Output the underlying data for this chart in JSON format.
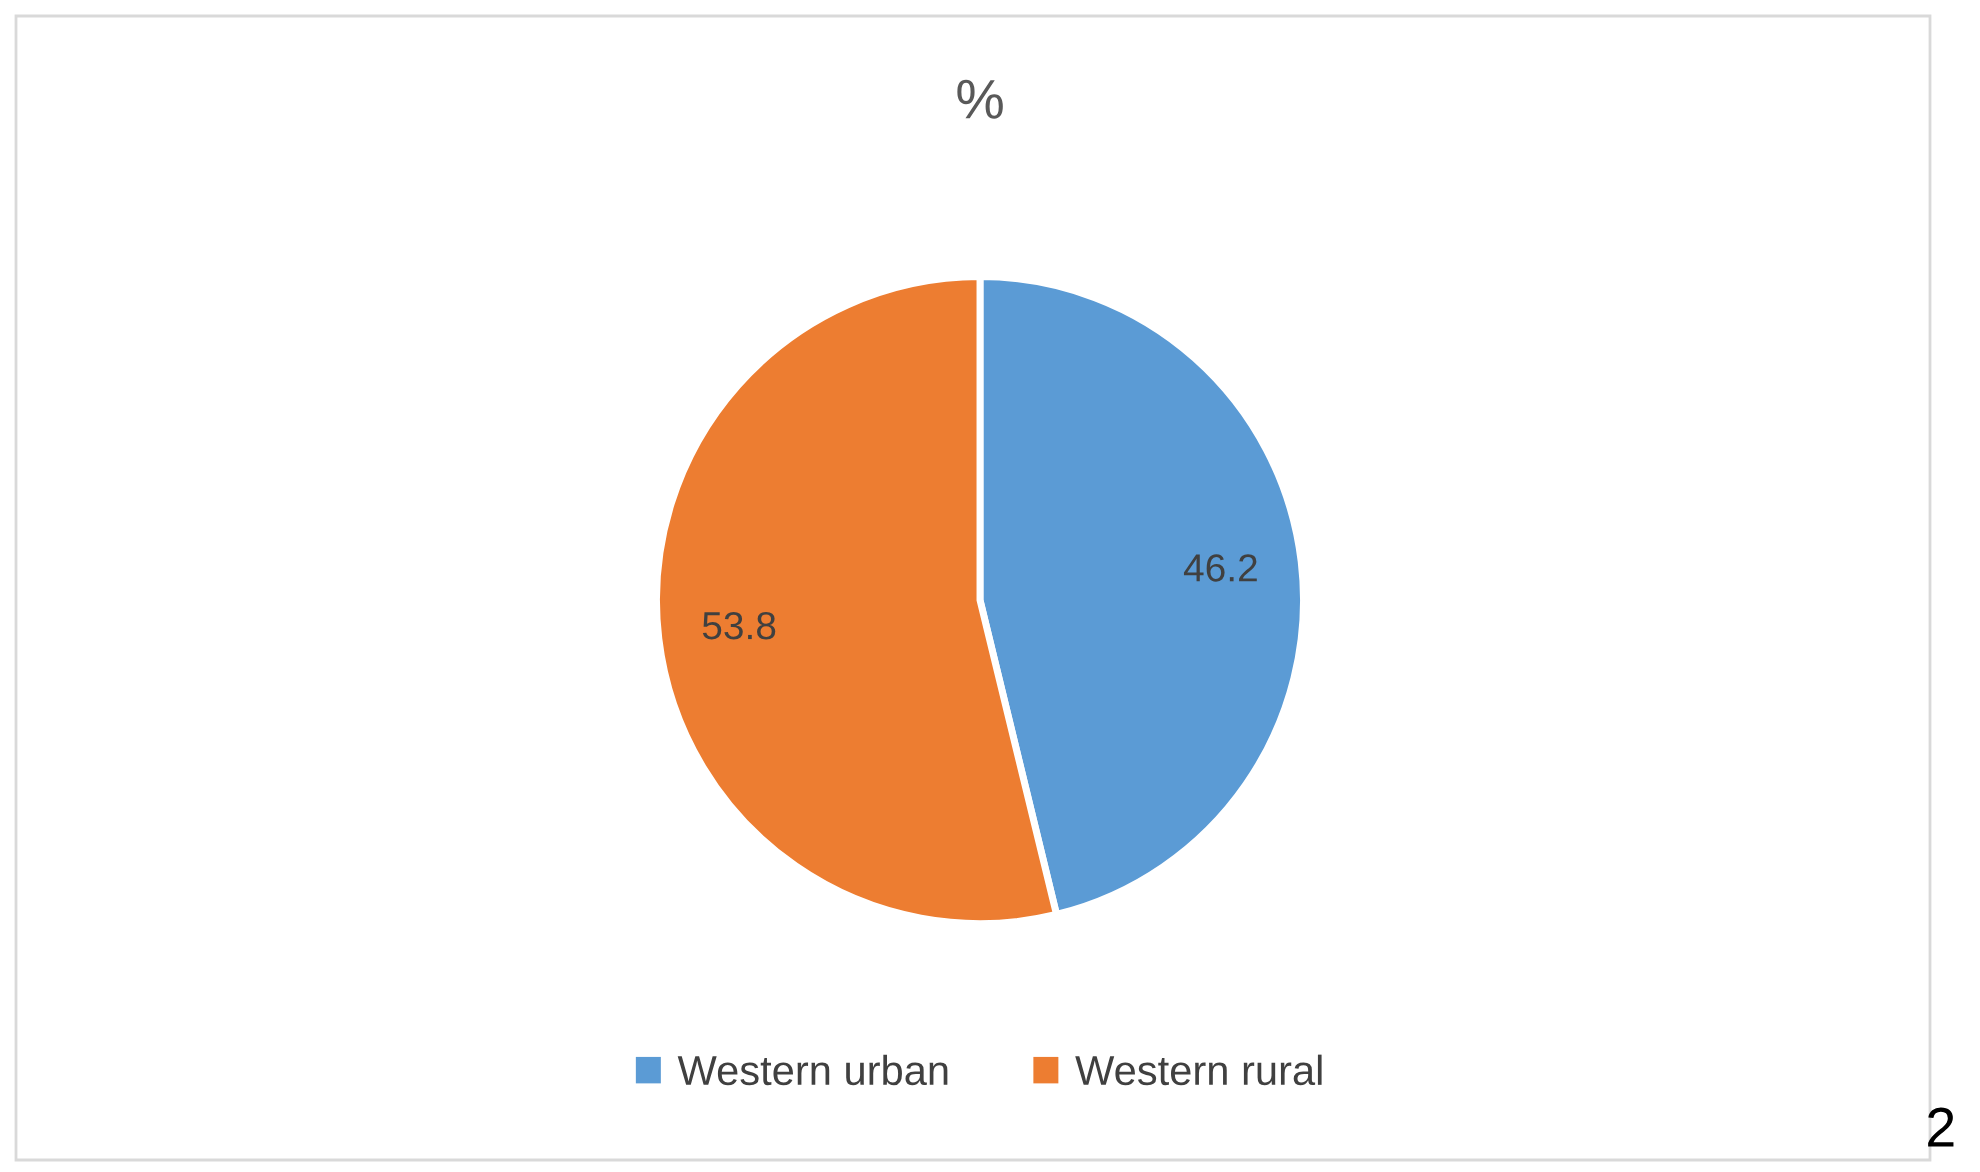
{
  "chart_data": {
    "type": "pie",
    "title": "%",
    "categories": [
      "Western urban",
      "Western rural"
    ],
    "values": [
      46.2,
      53.8
    ],
    "colors": [
      "#5b9bd5",
      "#ed7d31"
    ],
    "data_labels": true,
    "legend": "bottom",
    "annotations": [
      "2"
    ]
  }
}
